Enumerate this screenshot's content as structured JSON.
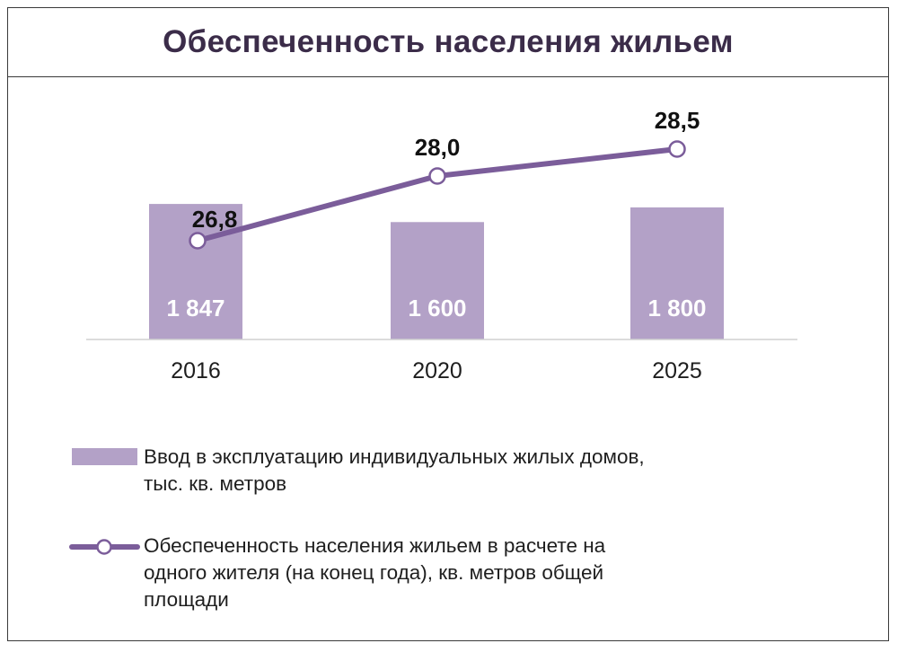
{
  "title": "Обеспеченность населения жильем",
  "colors": {
    "bar": "#b3a1c7",
    "line": "#7b5d9a",
    "title": "#3b2c49",
    "bar_label": "#ffffff"
  },
  "chart_data": {
    "type": "bar",
    "categories": [
      "2016",
      "2020",
      "2025"
    ],
    "series": [
      {
        "name": "Ввод в эксплуатацию индивидуальных жилых домов, тыс. кв. метров",
        "type": "bar",
        "values": [
          1847,
          1600,
          1800
        ],
        "labels": [
          "1 847",
          "1 600",
          "1 800"
        ]
      },
      {
        "name": "Обеспеченность населения жильем в расчете на одного жителя (на конец года), кв. метров общей площади",
        "type": "line",
        "values": [
          26.8,
          28.0,
          28.5
        ],
        "labels": [
          "26,8",
          "28,0",
          "28,5"
        ]
      }
    ],
    "legend": {
      "bar_lines": [
        "Ввод в эксплуатацию индивидуальных жилых домов,",
        "тыс. кв. метров"
      ],
      "line_lines": [
        "Обеспеченность населения жильем в расчете на",
        "одного жителя (на конец года), кв. метров общей",
        "площади"
      ]
    },
    "legend_position": "bottom",
    "grid": false
  }
}
